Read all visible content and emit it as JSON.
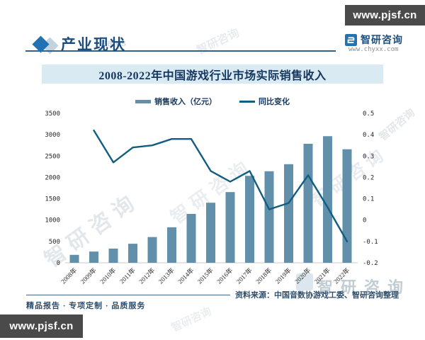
{
  "badges": {
    "top": "www.pjsf.cn",
    "bottom": "www.pjsf.cn"
  },
  "header": {
    "title": "产业现状",
    "watermark": "status",
    "logo_name": "智研咨询",
    "logo_url": "www.chyxx.com"
  },
  "chart_data": {
    "type": "bar",
    "title": "2008-2022年中国游戏行业市场实际销售收入",
    "categories": [
      "2008年",
      "2009年",
      "2010年",
      "2011年",
      "2012年",
      "2013年",
      "2014年",
      "2015年",
      "2016年",
      "2017年",
      "2018年",
      "2019年",
      "2020年",
      "2021年",
      "2022年"
    ],
    "series": [
      {
        "name": "销售收入（亿元）",
        "type": "bar",
        "axis": "left",
        "color": "#6290ab",
        "values": [
          186,
          263,
          333,
          446,
          603,
          832,
          1145,
          1407,
          1656,
          2036,
          2144,
          2309,
          2787,
          2965,
          2659
        ]
      },
      {
        "name": "同比变化",
        "type": "line",
        "axis": "right",
        "color": "#115e80",
        "values": [
          null,
          0.42,
          0.27,
          0.34,
          0.35,
          0.38,
          0.38,
          0.23,
          0.18,
          0.23,
          0.05,
          0.08,
          0.21,
          0.06,
          -0.1
        ]
      }
    ],
    "left_axis": {
      "min": 0,
      "max": 3500,
      "ticks": [
        "0",
        "500",
        "1000",
        "1500",
        "2000",
        "2500",
        "3000",
        "3500"
      ]
    },
    "right_axis": {
      "min": -0.2,
      "max": 0.5,
      "ticks": [
        "-0.2",
        "-0.1",
        "0",
        "0.1",
        "0.2",
        "0.3",
        "0.4",
        "0.5"
      ]
    },
    "legend_position": "top",
    "grid": false
  },
  "source_text": "资料来源：中国音数协游戏工委、智研咨询整理",
  "footer_tagline": "精品报告 · 专项定制 · 品质服务",
  "watermark_brand": "智研咨询",
  "colors": {
    "bar": "#6290ab",
    "line": "#115e80",
    "title_bar_bg": "#d9eaf2",
    "accent_navy": "#1b4d7e",
    "badge_bg": "#4a4a4b",
    "axis_text": "#262626"
  }
}
